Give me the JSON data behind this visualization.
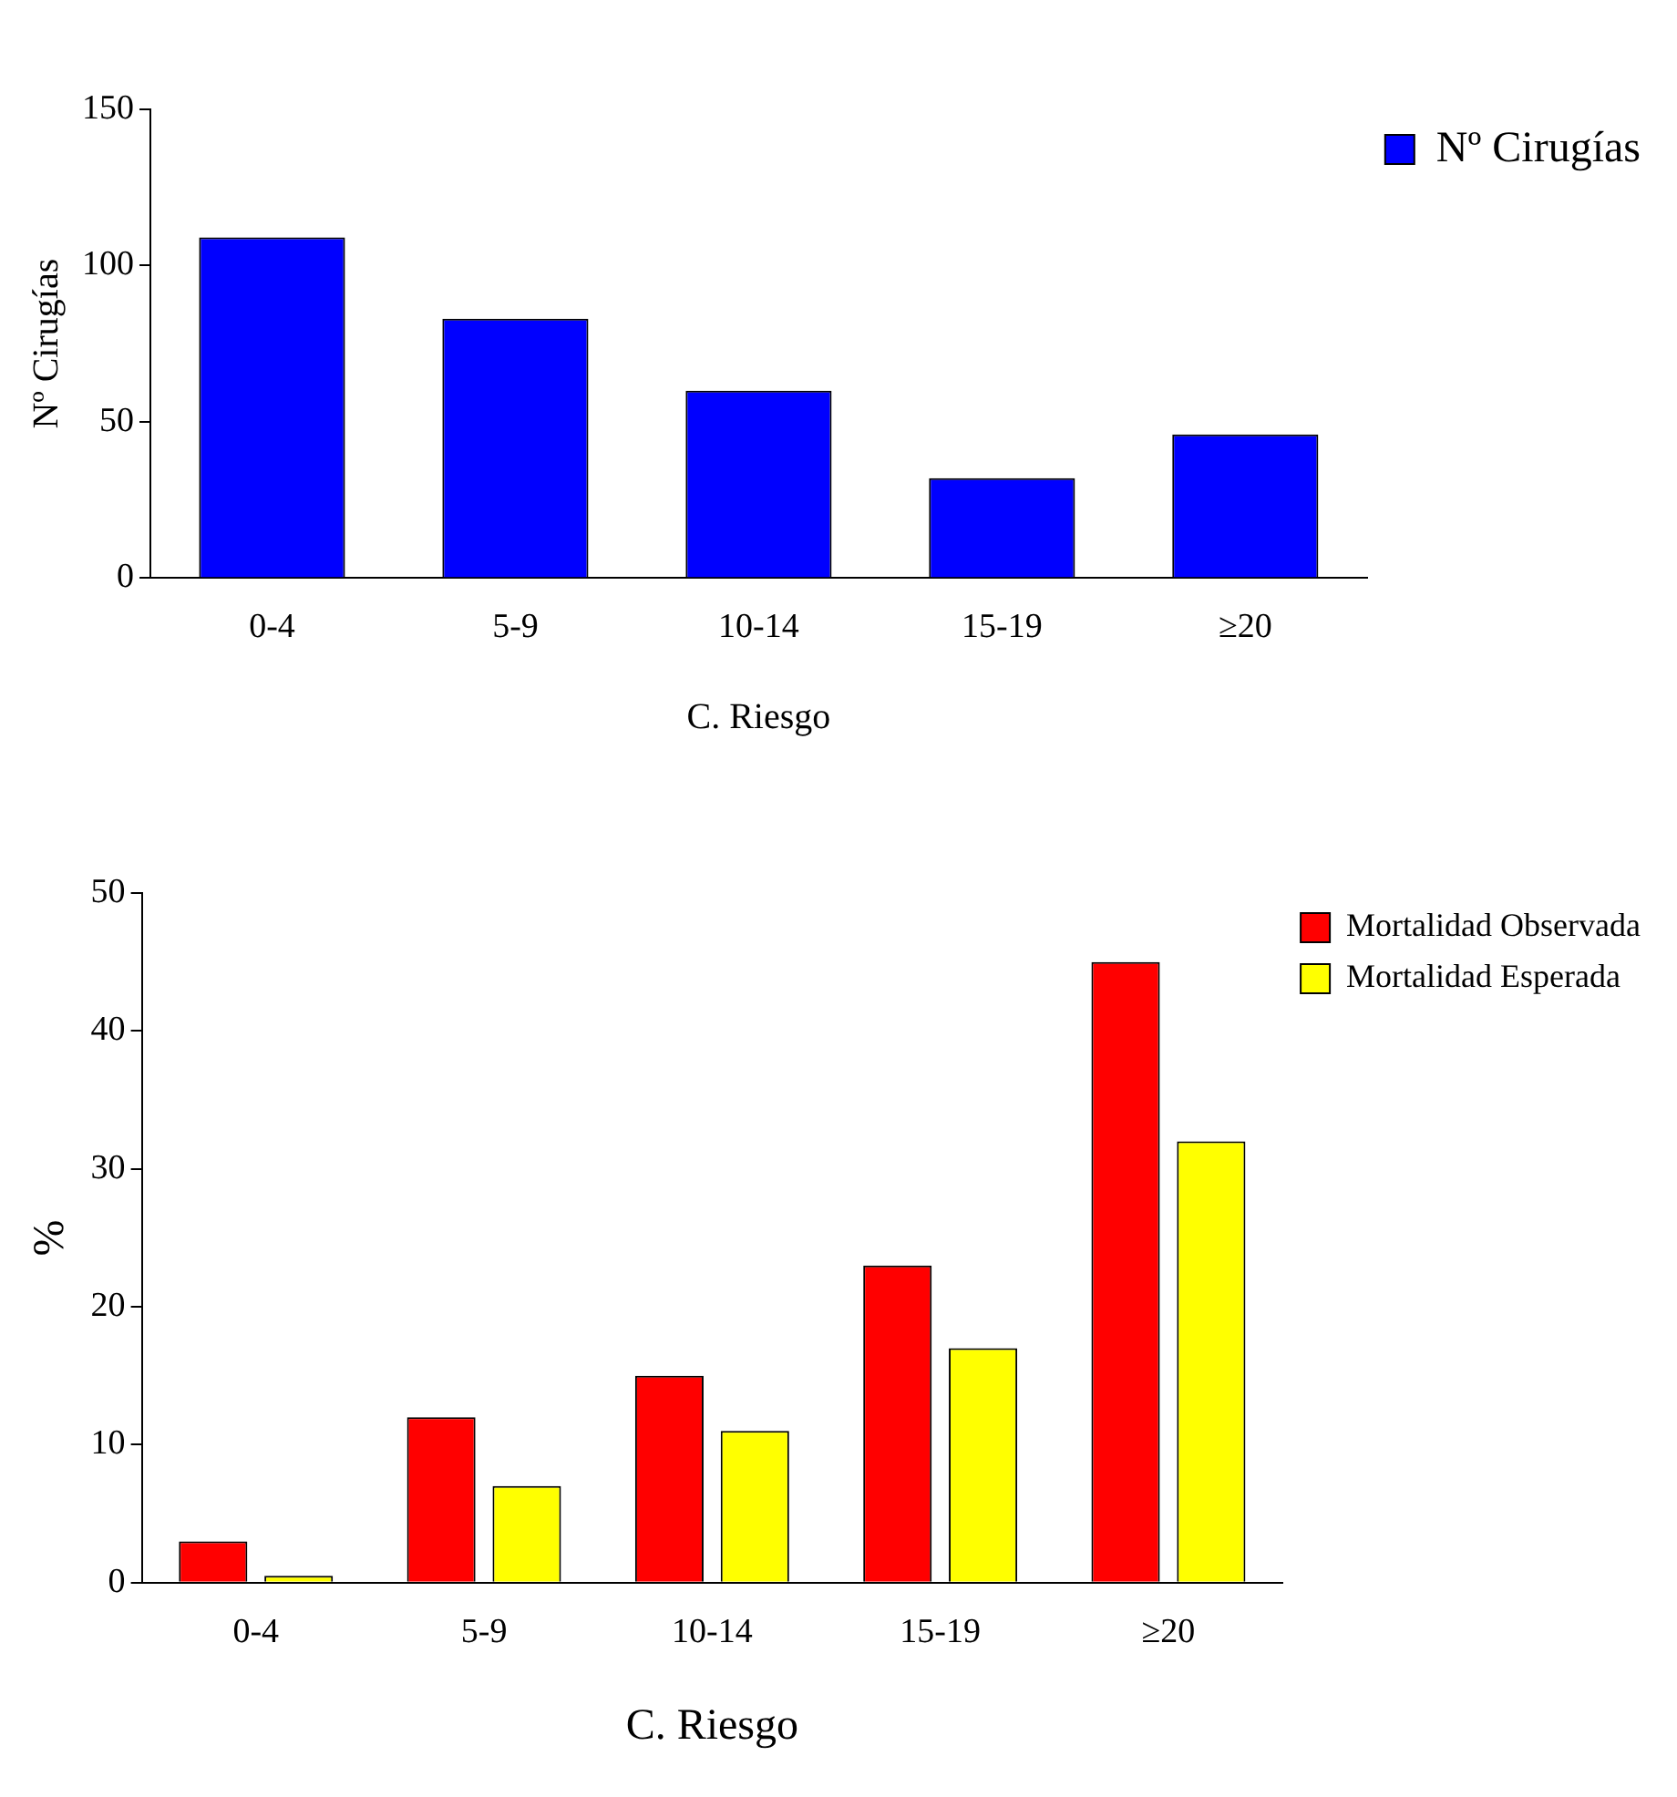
{
  "chart_data": [
    {
      "type": "bar",
      "xlabel": "C. Riesgo",
      "ylabel": "Nº Cirugías",
      "categories": [
        "0-4",
        "5-9",
        "10-14",
        "15-19",
        "≥20"
      ],
      "series": [
        {
          "name": "Nº Cirugías",
          "color": "#0000ff",
          "values": [
            109,
            83,
            60,
            32,
            46
          ]
        }
      ],
      "ylim": [
        0,
        150
      ],
      "yticks": [
        0,
        50,
        100,
        150
      ],
      "grid": false,
      "legend": "top right"
    },
    {
      "type": "bar",
      "xlabel": "C. Riesgo",
      "ylabel": "%",
      "categories": [
        "0-4",
        "5-9",
        "10-14",
        "15-19",
        "≥20"
      ],
      "series": [
        {
          "name": "Mortalidad Observada",
          "color": "#ff0000",
          "values": [
            3,
            12,
            15,
            23,
            45
          ]
        },
        {
          "name": "Mortalidad Esperada",
          "color": "#ffff00",
          "values": [
            0.5,
            7,
            11,
            17,
            32
          ]
        }
      ],
      "ylim": [
        0,
        50
      ],
      "yticks": [
        0,
        10,
        20,
        30,
        40,
        50
      ],
      "grid": false,
      "legend": "top right"
    }
  ]
}
